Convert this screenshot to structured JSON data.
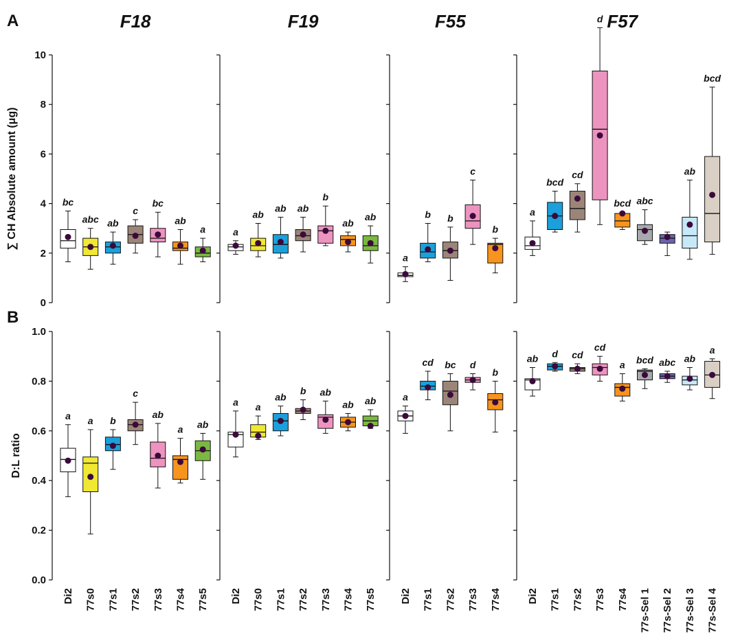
{
  "chart_data": [
    {
      "type": "box",
      "title": "F18",
      "categories": [
        "Di2",
        "77s0",
        "77s1",
        "77s2",
        "77s3",
        "77s4",
        "77s5"
      ],
      "colors": [
        "#ffffff",
        "#f0e832",
        "#1ba0db",
        "#9b8579",
        "#ec94bf",
        "#f7941d",
        "#7bb842"
      ],
      "panels": [
        {
          "panel": "A",
          "ylabel": "∑ CH Absolute amount (μg)",
          "ylim": [
            0,
            10
          ],
          "yticks": [
            0,
            2,
            4,
            6,
            8,
            10
          ],
          "tick_labels": true,
          "whislo": [
            1.65,
            1.35,
            1.55,
            2.0,
            1.85,
            1.55,
            1.65
          ],
          "q1": [
            2.2,
            1.9,
            2.0,
            2.4,
            2.45,
            2.1,
            1.85
          ],
          "med": [
            2.5,
            2.25,
            2.25,
            2.75,
            2.6,
            2.2,
            2.0
          ],
          "q3": [
            2.95,
            2.6,
            2.45,
            3.1,
            3.0,
            2.45,
            2.25
          ],
          "whishi": [
            3.7,
            3.0,
            2.85,
            3.35,
            3.65,
            2.95,
            2.6
          ],
          "mean": [
            2.65,
            2.25,
            2.3,
            2.7,
            2.75,
            2.3,
            2.1
          ],
          "letters": [
            "bc",
            "abc",
            "ab",
            "c",
            "bc",
            "ab",
            "a"
          ]
        },
        {
          "panel": "B",
          "ylabel": "D:L ratio",
          "ylim": [
            0,
            1
          ],
          "yticks": [
            {
              "value": 0,
              "label": "0.0"
            },
            0.2,
            0.4,
            0.6,
            0.8,
            {
              "value": 1,
              "label": "1.0"
            }
          ],
          "tick_labels": true,
          "whislo": [
            0.335,
            0.185,
            0.445,
            0.545,
            0.37,
            0.39,
            0.405
          ],
          "q1": [
            0.435,
            0.355,
            0.52,
            0.6,
            0.455,
            0.405,
            0.48
          ],
          "med": [
            0.485,
            0.47,
            0.545,
            0.625,
            0.49,
            0.485,
            0.52
          ],
          "q3": [
            0.53,
            0.495,
            0.575,
            0.645,
            0.555,
            0.5,
            0.56
          ],
          "whishi": [
            0.625,
            0.605,
            0.605,
            0.715,
            0.63,
            0.57,
            0.59
          ],
          "mean": [
            0.48,
            0.415,
            0.54,
            0.625,
            0.5,
            0.475,
            0.525
          ],
          "letters": [
            "a",
            "a",
            "b",
            "c",
            "ab",
            "a",
            "ab"
          ]
        }
      ]
    },
    {
      "type": "box",
      "title": "F19",
      "categories": [
        "Di2",
        "77s0",
        "77s1",
        "77s2",
        "77s3",
        "77s4",
        "77s5"
      ],
      "colors": [
        "#ffffff",
        "#f0e832",
        "#1ba0db",
        "#9b8579",
        "#ec94bf",
        "#f7941d",
        "#7bb842"
      ],
      "panels": [
        {
          "ylim": [
            0,
            10
          ],
          "yticks": [
            0,
            2,
            4,
            6,
            8,
            10
          ],
          "tick_labels": false,
          "whislo": [
            1.95,
            1.85,
            1.8,
            2.05,
            2.3,
            2.05,
            1.6
          ],
          "q1": [
            2.1,
            2.1,
            2.0,
            2.5,
            2.4,
            2.3,
            2.1
          ],
          "med": [
            2.25,
            2.3,
            2.35,
            2.7,
            2.9,
            2.55,
            2.3
          ],
          "q3": [
            2.35,
            2.6,
            2.75,
            2.95,
            3.1,
            2.7,
            2.7
          ],
          "whishi": [
            2.5,
            3.2,
            3.45,
            3.45,
            3.9,
            2.85,
            3.1
          ],
          "mean": [
            2.3,
            2.4,
            2.45,
            2.75,
            2.9,
            2.45,
            2.4
          ],
          "letters": [
            "a",
            "ab",
            "ab",
            "ab",
            "b",
            "ab",
            "ab"
          ]
        },
        {
          "ylim": [
            0,
            1
          ],
          "yticks": [
            0,
            0.2,
            0.4,
            0.6,
            0.8,
            1
          ],
          "tick_labels": false,
          "whislo": [
            0.495,
            0.565,
            0.58,
            0.645,
            0.59,
            0.6,
            0.61
          ],
          "q1": [
            0.535,
            0.575,
            0.6,
            0.67,
            0.61,
            0.615,
            0.62
          ],
          "med": [
            0.585,
            0.595,
            0.64,
            0.68,
            0.655,
            0.635,
            0.64
          ],
          "q3": [
            0.595,
            0.625,
            0.67,
            0.69,
            0.665,
            0.655,
            0.66
          ],
          "whishi": [
            0.68,
            0.66,
            0.7,
            0.725,
            0.72,
            0.67,
            0.685
          ],
          "mean": [
            0.585,
            0.58,
            0.64,
            0.685,
            0.645,
            0.635,
            0.62
          ],
          "letters": [
            "a",
            "a",
            "ab",
            "b",
            "ab",
            "ab",
            "ab"
          ]
        }
      ]
    },
    {
      "type": "box",
      "title": "F55",
      "categories": [
        "Di2",
        "77s1",
        "77s2",
        "77s3",
        "77s4"
      ],
      "colors": [
        "#ffffff",
        "#1ba0db",
        "#9b8579",
        "#ec94bf",
        "#f7941d"
      ],
      "panels": [
        {
          "ylim": [
            0,
            10
          ],
          "yticks": [
            0,
            2,
            4,
            6,
            8,
            10
          ],
          "tick_labels": false,
          "whislo": [
            0.85,
            1.65,
            0.9,
            2.35,
            1.2
          ],
          "q1": [
            1.05,
            1.8,
            1.8,
            3.0,
            1.6
          ],
          "med": [
            1.1,
            2.05,
            2.1,
            3.3,
            2.35
          ],
          "q3": [
            1.2,
            2.4,
            2.45,
            3.95,
            2.4
          ],
          "whishi": [
            1.45,
            3.2,
            3.05,
            4.95,
            2.6
          ],
          "mean": [
            1.15,
            2.15,
            2.1,
            3.5,
            2.2
          ],
          "letters": [
            "a",
            "b",
            "b",
            "c",
            "b"
          ]
        },
        {
          "ylim": [
            0,
            1
          ],
          "yticks": [
            0,
            0.2,
            0.4,
            0.6,
            0.8,
            1
          ],
          "tick_labels": false,
          "whislo": [
            0.59,
            0.725,
            0.6,
            0.765,
            0.595
          ],
          "q1": [
            0.64,
            0.765,
            0.705,
            0.795,
            0.685
          ],
          "med": [
            0.66,
            0.78,
            0.76,
            0.805,
            0.725
          ],
          "q3": [
            0.68,
            0.8,
            0.8,
            0.815,
            0.75
          ],
          "whishi": [
            0.7,
            0.84,
            0.83,
            0.83,
            0.8
          ],
          "mean": [
            0.66,
            0.775,
            0.745,
            0.805,
            0.715
          ],
          "letters": [
            "a",
            "cd",
            "bc",
            "d",
            "b"
          ]
        }
      ]
    },
    {
      "type": "box",
      "title": "F57",
      "categories": [
        "Di2",
        "77s1",
        "77s2",
        "77s3",
        "77s4",
        "77s-Sel 1",
        "77s-Sel 2",
        "77s-Sel 3",
        "77s-Sel 4"
      ],
      "colors": [
        "#ffffff",
        "#1ba0db",
        "#9b8579",
        "#ec94bf",
        "#f7941d",
        "#a7a9ac",
        "#6b64ad",
        "#c7e8f7",
        "#d9cfc4"
      ],
      "panels": [
        {
          "ylim": [
            0,
            10
          ],
          "yticks": [
            0,
            2,
            4,
            6,
            8,
            10
          ],
          "tick_labels": false,
          "whislo": [
            1.9,
            2.85,
            2.85,
            3.15,
            2.95,
            2.35,
            1.9,
            1.75,
            1.95
          ],
          "q1": [
            2.15,
            2.95,
            3.35,
            4.15,
            3.05,
            2.5,
            2.4,
            2.2,
            2.45
          ],
          "med": [
            2.3,
            3.5,
            3.8,
            7.0,
            3.3,
            2.95,
            2.6,
            2.7,
            3.6
          ],
          "q3": [
            2.65,
            4.05,
            4.5,
            9.35,
            3.6,
            3.15,
            2.75,
            3.45,
            5.9
          ],
          "whishi": [
            3.3,
            4.5,
            4.8,
            11.1,
            3.65,
            3.75,
            2.85,
            4.95,
            8.7
          ],
          "mean": [
            2.4,
            3.5,
            4.2,
            6.75,
            3.6,
            2.9,
            2.65,
            3.15,
            4.35
          ],
          "letters": [
            "a",
            "bcd",
            "cd",
            "d",
            "bcd",
            "abc",
            null,
            "ab",
            "bcd"
          ]
        },
        {
          "ylim": [
            0,
            1
          ],
          "yticks": [
            0,
            0.2,
            0.4,
            0.6,
            0.8,
            1
          ],
          "tick_labels": false,
          "whislo": [
            0.74,
            0.84,
            0.83,
            0.8,
            0.72,
            0.77,
            0.795,
            0.765,
            0.73
          ],
          "q1": [
            0.765,
            0.845,
            0.84,
            0.825,
            0.74,
            0.805,
            0.81,
            0.785,
            0.775
          ],
          "med": [
            0.805,
            0.86,
            0.85,
            0.855,
            0.775,
            0.84,
            0.82,
            0.805,
            0.825
          ],
          "q3": [
            0.81,
            0.87,
            0.855,
            0.87,
            0.79,
            0.845,
            0.83,
            0.82,
            0.88
          ],
          "whishi": [
            0.855,
            0.875,
            0.87,
            0.9,
            0.83,
            0.85,
            0.84,
            0.855,
            0.89
          ],
          "mean": [
            0.8,
            0.86,
            0.85,
            0.85,
            0.77,
            0.825,
            0.82,
            0.81,
            0.825
          ],
          "letters": [
            "ab",
            "d",
            "cd",
            "cd",
            "a",
            "bcd",
            "abc",
            "ab",
            "a"
          ]
        }
      ]
    }
  ]
}
